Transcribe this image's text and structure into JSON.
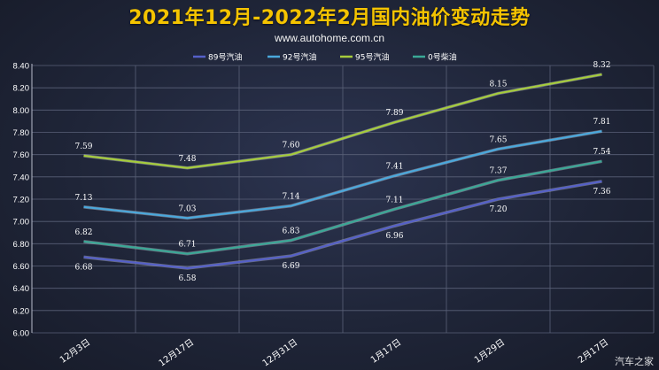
{
  "title": "2021年12月-2022年2月国内油价变动走势",
  "subtitle": "www.autohome.com.cn",
  "watermark": "汽车之家",
  "colors": {
    "background": "#1f2538",
    "title": "#f5c400",
    "axis_text": "#ffffff",
    "grid": "#5a6178"
  },
  "chart_data": {
    "type": "line",
    "categories": [
      "12月3日",
      "12月17日",
      "12月31日",
      "1月17日",
      "1月29日",
      "2月17日"
    ],
    "ylim": [
      6.0,
      8.4
    ],
    "ytick_step": 0.2,
    "yticks": [
      "6.00",
      "6.20",
      "6.40",
      "6.60",
      "6.80",
      "7.00",
      "7.20",
      "7.40",
      "7.60",
      "7.80",
      "8.00",
      "8.20",
      "8.40"
    ],
    "grid": true,
    "legend_position": "top-center",
    "series": [
      {
        "name": "89号汽油",
        "color": "#5560c8",
        "values": [
          6.68,
          6.58,
          6.69,
          6.96,
          7.2,
          7.36
        ],
        "labels": [
          "6.68",
          "6.58",
          "6.69",
          "6.96",
          "7.20",
          "7.36"
        ],
        "label_side": "below"
      },
      {
        "name": "92号汽油",
        "color": "#4aa8dc",
        "values": [
          7.13,
          7.03,
          7.14,
          7.41,
          7.65,
          7.81
        ],
        "labels": [
          "7.13",
          "7.03",
          "7.14",
          "7.41",
          "7.65",
          "7.81"
        ],
        "label_side": "above"
      },
      {
        "name": "95号汽油",
        "color": "#a6cc3c",
        "values": [
          7.59,
          7.48,
          7.6,
          7.89,
          8.15,
          8.32
        ],
        "labels": [
          "7.59",
          "7.48",
          "7.60",
          "7.89",
          "8.15",
          "8.32"
        ],
        "label_side": "above"
      },
      {
        "name": "0号柴油",
        "color": "#3aa896",
        "values": [
          6.82,
          6.71,
          6.83,
          7.11,
          7.37,
          7.54
        ],
        "labels": [
          "6.82",
          "6.71",
          "6.83",
          "7.11",
          "7.37",
          "7.54"
        ],
        "label_side": "above"
      }
    ]
  }
}
